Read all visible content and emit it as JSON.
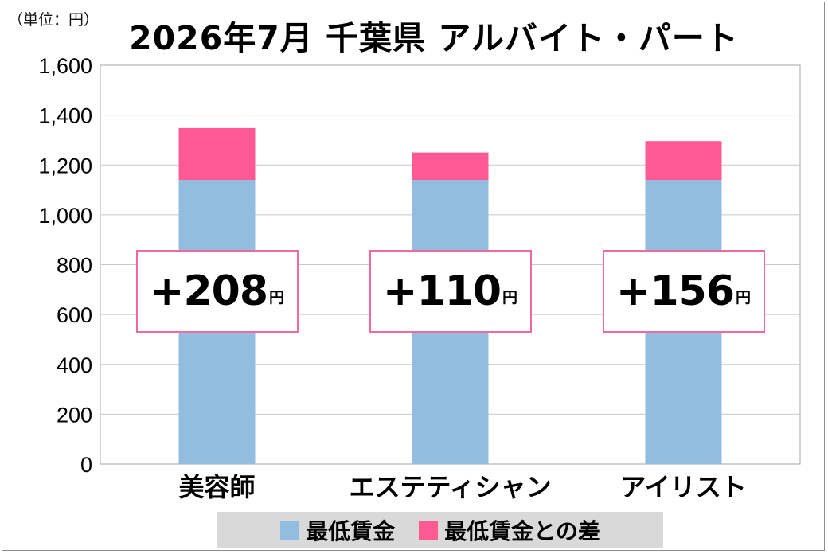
{
  "unit_note": "（単位：円）",
  "colors": {
    "base": "#93bde0",
    "diff": "#ff5a93",
    "box_border": "#f06aa0",
    "grid": "#c8c8c8"
  },
  "chart_data": {
    "type": "bar",
    "stacked": true,
    "title": "2026年7月 千葉県 アルバイト・パート",
    "categories": [
      "美容師",
      "エステティシャン",
      "アイリスト"
    ],
    "series": [
      {
        "name": "最低賃金",
        "values": [
          1140,
          1140,
          1140
        ]
      },
      {
        "name": "最低賃金との差",
        "values": [
          208,
          110,
          156
        ]
      }
    ],
    "annotations": [
      "+208",
      "+110",
      "+156"
    ],
    "annotation_unit": "円",
    "ylim": [
      0,
      1600
    ],
    "yticks": [
      "0",
      "200",
      "400",
      "600",
      "800",
      "1,000",
      "1,200",
      "1,400",
      "1,600"
    ],
    "grid": true,
    "legend_position": "bottom"
  }
}
